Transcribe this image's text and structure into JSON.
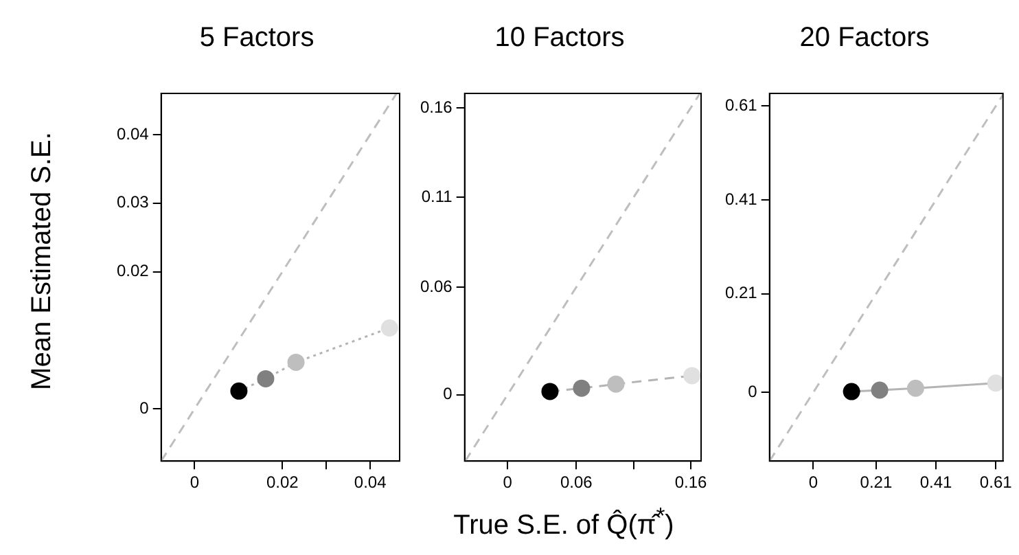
{
  "chart_data": [
    {
      "type": "line",
      "title": "5 Factors",
      "ylabel": "Mean Estimated S.E.",
      "xlim": [
        -0.0076,
        0.0467
      ],
      "ylim": [
        -0.0076,
        0.046
      ],
      "xticks": [
        0,
        0.02,
        {
          "value": 0.03,
          "label": null
        },
        0.04
      ],
      "yticks": [
        0,
        0.02,
        0.03,
        0.04
      ],
      "grid": false,
      "legend": false,
      "series": [
        {
          "x": [
            -0.0076,
            0.046
          ],
          "values": [
            -0.0076,
            0.046
          ],
          "color": "#bebebe",
          "line_style": "dashed",
          "marker": "none"
        },
        {
          "x": [
            0.0101,
            0.0162,
            0.0231,
            0.0444
          ],
          "values": [
            0.0026,
            0.0044,
            0.0068,
            0.0118
          ],
          "color": "#b4b4b4",
          "colors": [
            "#000000",
            "#808080",
            "#bebebe",
            "#e0e0e0"
          ],
          "line_style": "dotted",
          "marker": "circle"
        }
      ]
    },
    {
      "type": "line",
      "title": "10 Factors",
      "xlabel": "True S.E. of Q̂(π̂$^{*}$)",
      "xlim": [
        -0.0375,
        0.169
      ],
      "ylim": [
        -0.037,
        0.168
      ],
      "xticks": [
        0,
        0.06,
        {
          "value": 0.11,
          "label": null
        },
        0.16
      ],
      "yticks": [
        0,
        0.06,
        0.11,
        0.16
      ],
      "grid": false,
      "legend": false,
      "series": [
        {
          "x": [
            -0.037,
            0.168
          ],
          "values": [
            -0.037,
            0.168
          ],
          "color": "#bebebe",
          "line_style": "dashed",
          "marker": "none"
        },
        {
          "x": [
            0.037,
            0.0646,
            0.0946,
            0.161
          ],
          "values": [
            0.0018,
            0.0036,
            0.0059,
            0.0106
          ],
          "color": "#b4b4b4",
          "colors": [
            "#000000",
            "#808080",
            "#bebebe",
            "#e0e0e0"
          ],
          "line_style": "dashed",
          "marker": "circle"
        }
      ]
    },
    {
      "type": "line",
      "title": "20 Factors",
      "xlim": [
        -0.146,
        0.634
      ],
      "ylim": [
        -0.146,
        0.637
      ],
      "xticks": [
        0,
        0.21,
        0.41,
        0.61
      ],
      "yticks": [
        0,
        0.21,
        0.41,
        0.61
      ],
      "grid": false,
      "legend": false,
      "series": [
        {
          "x": [
            -0.146,
            0.634
          ],
          "values": [
            -0.146,
            0.634
          ],
          "color": "#bebebe",
          "line_style": "dashed",
          "marker": "none"
        },
        {
          "x": [
            0.128,
            0.222,
            0.342,
            0.61
          ],
          "values": [
            0.002,
            0.005,
            0.009,
            0.02
          ],
          "color": "#b4b4b4",
          "colors": [
            "#000000",
            "#808080",
            "#bebebe",
            "#e0e0e0"
          ],
          "line_style": "solid",
          "marker": "circle"
        }
      ]
    }
  ]
}
